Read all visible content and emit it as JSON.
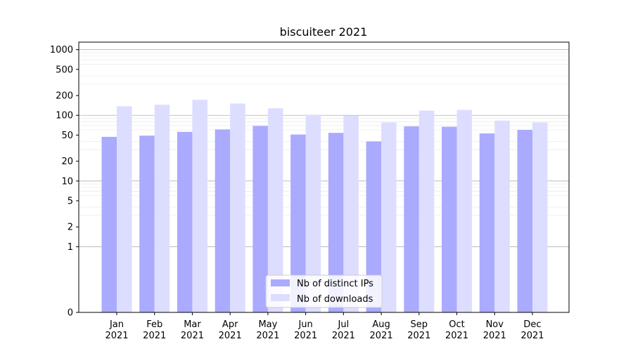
{
  "chart_data": {
    "type": "bar",
    "title": "biscuiteer 2021",
    "xlabel": "",
    "ylabel": "",
    "yscale": "symlog",
    "ylim": [
      0,
      1300
    ],
    "yticks": [
      0,
      1,
      2,
      5,
      10,
      20,
      50,
      100,
      200,
      500,
      1000
    ],
    "ytick_labels": [
      "0",
      "1",
      "2",
      "5",
      "10",
      "20",
      "50",
      "100",
      "200",
      "500",
      "1000"
    ],
    "categories": [
      "Jan\n2021",
      "Feb\n2021",
      "Mar\n2021",
      "Apr\n2021",
      "May\n2021",
      "Jun\n2021",
      "Jul\n2021",
      "Aug\n2021",
      "Sep\n2021",
      "Oct\n2021",
      "Nov\n2021",
      "Dec\n2021"
    ],
    "series": [
      {
        "name": "Nb of distinct IPs",
        "color": "#aaaaff",
        "values": [
          47,
          49,
          56,
          61,
          69,
          51,
          54,
          40,
          68,
          67,
          53,
          60
        ]
      },
      {
        "name": "Nb of downloads",
        "color": "#ddddff",
        "values": [
          137,
          145,
          172,
          151,
          128,
          102,
          99,
          78,
          118,
          121,
          83,
          78
        ]
      }
    ],
    "grid": true,
    "legend": "lower-center"
  }
}
